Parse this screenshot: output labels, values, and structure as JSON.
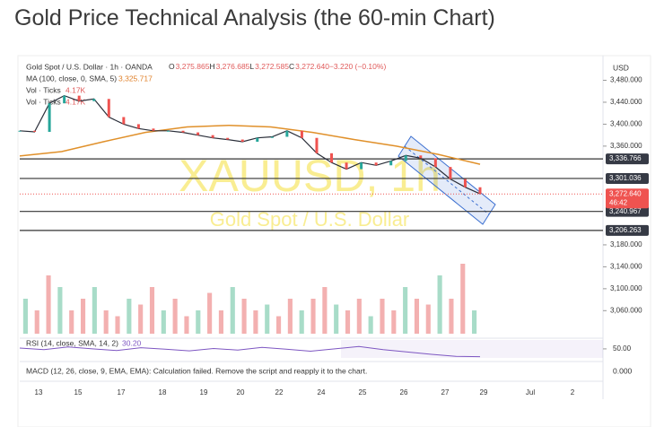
{
  "page_title": "Gold Price Technical Analysis (the 60-min Chart)",
  "chart": {
    "header": {
      "symbol": "Gold Spot / U.S. Dollar · 1h · OANDA",
      "ohlc": [
        {
          "label": "O",
          "value": "3,275.865"
        },
        {
          "label": "H",
          "value": "3,276.685"
        },
        {
          "label": "L",
          "value": "3,272.585"
        },
        {
          "label": "C",
          "value": "3,272.640"
        }
      ],
      "change": "−3.220 (−0.10%)",
      "ma": "MA (100, close, 0, SMA, 5)",
      "ma_value": "3,325.717",
      "vol_label": "Vol · Ticks",
      "vol_value": "4.17K",
      "vol2_label": "Vol · Ticks",
      "vol2_value": "4.17K"
    },
    "watermark": {
      "symbol": "XAUUSD, 1h",
      "name": "Gold Spot / U.S. Dollar"
    },
    "currency": "USD",
    "ylim": [
      3018,
      3525
    ],
    "yticks": [
      {
        "value": 3060,
        "label": "3,060.000"
      },
      {
        "value": 3100,
        "label": "3,100.000"
      },
      {
        "value": 3140,
        "label": "3,140.000"
      },
      {
        "value": 3180,
        "label": "3,180.000"
      },
      {
        "value": 3360,
        "label": "3,360.000"
      },
      {
        "value": 3400,
        "label": "3,400.000"
      },
      {
        "value": 3440,
        "label": "3,440.000"
      },
      {
        "value": 3480,
        "label": "3,480.000"
      }
    ],
    "levels": [
      {
        "value": 3336.766,
        "label": "3,336.766"
      },
      {
        "value": 3301.036,
        "label": "3,301.036"
      },
      {
        "value": 3240.967,
        "label": "3,240.967"
      },
      {
        "value": 3206.263,
        "label": "3,206.263"
      }
    ],
    "current": {
      "value": 3272.64,
      "label": "3,272.640",
      "countdown": "46:42"
    },
    "x_labels": [
      "13",
      "15",
      "17",
      "18",
      "19",
      "20",
      "22",
      "24",
      "25",
      "26",
      "27",
      "29",
      "Jul",
      "2"
    ],
    "price": [
      3388,
      3386,
      3438,
      3452,
      3442,
      3446,
      3413,
      3400,
      3392,
      3388,
      3388,
      3385,
      3380,
      3375,
      3372,
      3368,
      3375,
      3377,
      3388,
      3375,
      3347,
      3330,
      3318,
      3330,
      3325,
      3333,
      3343,
      3338,
      3322,
      3300,
      3285,
      3273
    ],
    "ma": [
      3342,
      3350,
      3368,
      3385,
      3395,
      3398,
      3395,
      3385,
      3372,
      3360,
      3345,
      3327
    ],
    "volume": [
      3,
      2,
      5,
      4,
      2,
      3,
      4,
      2,
      1.5,
      3,
      2.5,
      4,
      2,
      3,
      1.5,
      2,
      3.5,
      2,
      4,
      3,
      2,
      2.5,
      1.5,
      3,
      2,
      3,
      4,
      2.5,
      2,
      3,
      1.5,
      3,
      2,
      4,
      3,
      2.5,
      5,
      3,
      6,
      2
    ],
    "rsi": {
      "label": "RSI (14, close, SMA, 14, 2)",
      "value_label": "30.20",
      "ylim": [
        20,
        75
      ],
      "yticks": [
        {
          "value": 50,
          "label": "50.00"
        }
      ],
      "values": [
        52,
        48,
        55,
        50,
        46,
        53,
        49,
        45,
        51,
        47,
        54,
        49,
        44,
        50,
        56,
        48,
        42,
        36,
        31,
        30
      ]
    },
    "macd": {
      "label": "MACD (12, 26, close, 9, EMA, EMA): Calculation failed. Remove the script and reapply it to the chart.",
      "tick": "0.000"
    }
  }
}
